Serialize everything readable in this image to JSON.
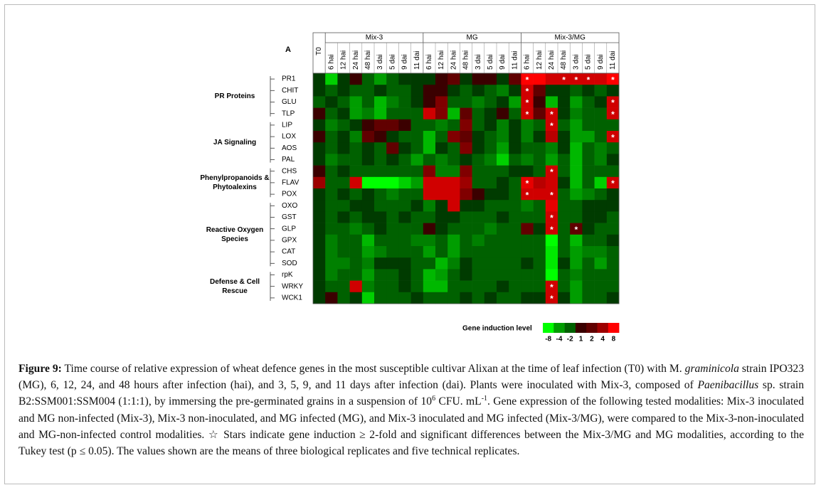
{
  "chart_data": {
    "type": "heatmap",
    "panel_label": "A",
    "t0": "T0",
    "column_groups": [
      {
        "name": "Mix-3",
        "columns": [
          "6 hai",
          "12 hai",
          "24 hai",
          "48 hai",
          "3 dai",
          "5 dai",
          "9 dai",
          "11 dai"
        ]
      },
      {
        "name": "MG",
        "columns": [
          "6 hai",
          "12 hai",
          "24 hai",
          "48 hai",
          "3 dai",
          "5 dai",
          "9 dai",
          "11 dai"
        ]
      },
      {
        "name": "Mix-3/MG",
        "columns": [
          "6 hai",
          "12 hai",
          "24 hai",
          "48 hai",
          "3 dai",
          "5 dai",
          "9 dai",
          "11 dai"
        ]
      }
    ],
    "row_groups": [
      {
        "lines": [
          "PR Proteins"
        ],
        "genes": [
          "PR1",
          "CHIT",
          "GLU",
          "TLP"
        ]
      },
      {
        "lines": [
          "JA Signaling"
        ],
        "genes": [
          "LIP",
          "LOX",
          "AOS",
          "PAL"
        ]
      },
      {
        "lines": [
          "Phenylpropanoids &",
          "Phytoalexins"
        ],
        "genes": [
          "CHS",
          "FLAV",
          "POX"
        ]
      },
      {
        "lines": [
          "Reactive Oxygen",
          "Species"
        ],
        "genes": [
          "OXO",
          "GST",
          "GLP",
          "GPX",
          "CAT",
          "SOD"
        ]
      },
      {
        "lines": [
          "Defense & Cell",
          "Rescue"
        ],
        "genes": [
          "rpK",
          "WRKY",
          "WCK1"
        ]
      }
    ],
    "values": [
      [
        -1,
        -6,
        -1,
        1,
        -2,
        -4,
        -2,
        -1,
        -1,
        -1,
        1,
        2,
        -1,
        1,
        1,
        -1,
        2,
        8,
        8,
        6,
        6,
        6,
        6,
        6,
        8
      ],
      [
        -1,
        -2,
        -1,
        -2,
        -2,
        -1,
        -2,
        -2,
        -1,
        1,
        1,
        -1,
        -2,
        -1,
        -2,
        -3,
        -1,
        6,
        2,
        -1,
        -1,
        -2,
        -1,
        -2,
        -1
      ],
      [
        -2,
        -1,
        -2,
        -4,
        -2,
        -5,
        -3,
        -2,
        -1,
        1,
        3,
        -2,
        -2,
        -3,
        -2,
        -1,
        -4,
        6,
        1,
        -5,
        -1,
        -4,
        -2,
        -1,
        6
      ],
      [
        1,
        -2,
        -1,
        -4,
        -3,
        -5,
        -2,
        -2,
        -2,
        6,
        3,
        -5,
        2,
        -2,
        -1,
        1,
        -2,
        6,
        2,
        6,
        -1,
        -3,
        -2,
        -2,
        6
      ],
      [
        -1,
        -3,
        -2,
        -1,
        1,
        2,
        2,
        1,
        -2,
        -2,
        -3,
        -2,
        3,
        -2,
        -1,
        -3,
        -1,
        -3,
        -2,
        6,
        -2,
        -4,
        -2,
        -2,
        -2
      ],
      [
        1,
        -2,
        -1,
        -3,
        2,
        1,
        -1,
        -2,
        -2,
        -5,
        -2,
        3,
        2,
        -1,
        -2,
        -3,
        -1,
        -3,
        -1,
        5,
        -1,
        -4,
        -4,
        -2,
        6
      ],
      [
        -1,
        -2,
        -1,
        -2,
        -1,
        -2,
        2,
        -1,
        -2,
        -5,
        -1,
        -2,
        3,
        -1,
        -2,
        -4,
        -1,
        -2,
        -2,
        -3,
        -1,
        -5,
        -2,
        -3,
        -2
      ],
      [
        -1,
        -3,
        -2,
        -2,
        -1,
        -2,
        -1,
        -2,
        -4,
        -2,
        -3,
        -2,
        -1,
        -2,
        -3,
        -6,
        -2,
        -3,
        -2,
        -4,
        -2,
        -5,
        -2,
        -3,
        -1
      ],
      [
        1,
        -2,
        -1,
        -2,
        -2,
        -2,
        -2,
        -2,
        -2,
        3,
        -3,
        -3,
        3,
        -2,
        -2,
        -2,
        -1,
        -1,
        -2,
        6,
        -2,
        -5,
        -2,
        -2,
        -2
      ],
      [
        4,
        -2,
        -2,
        6,
        -8,
        -8,
        -8,
        -6,
        -4,
        6,
        6,
        6,
        4,
        -2,
        -2,
        -1,
        -2,
        7,
        5,
        6,
        -1,
        -5,
        -2,
        -6,
        6
      ],
      [
        -1,
        -2,
        -1,
        -2,
        -1,
        -2,
        -3,
        -2,
        -2,
        6,
        6,
        6,
        3,
        1,
        -1,
        -1,
        -2,
        6,
        6,
        6,
        -2,
        -4,
        -3,
        -2,
        -1
      ],
      [
        -1,
        -2,
        -2,
        -1,
        -1,
        -2,
        -2,
        -2,
        -1,
        -3,
        -1,
        6,
        -1,
        -1,
        -2,
        -2,
        -2,
        -3,
        -2,
        7,
        -2,
        -2,
        -1,
        -1,
        -1
      ],
      [
        -1,
        -2,
        -1,
        -2,
        -1,
        -1,
        -2,
        -1,
        -2,
        -2,
        -1,
        -1,
        -2,
        -2,
        -2,
        -1,
        -2,
        -2,
        -2,
        6,
        -2,
        -2,
        -1,
        -1,
        -2
      ],
      [
        -1,
        -2,
        -2,
        -3,
        -2,
        -1,
        -2,
        -2,
        -2,
        1,
        -1,
        -2,
        -2,
        -2,
        -3,
        -2,
        -2,
        2,
        -1,
        6,
        -2,
        2,
        -1,
        -2,
        -2
      ],
      [
        -1,
        -3,
        -2,
        -2,
        -5,
        -2,
        -2,
        -2,
        -3,
        -3,
        -2,
        -4,
        -2,
        -3,
        -2,
        -2,
        -2,
        -2,
        -2,
        -8,
        -2,
        -5,
        -2,
        -2,
        -1
      ],
      [
        -1,
        -3,
        -2,
        -2,
        -4,
        -3,
        -2,
        -2,
        -2,
        -4,
        -2,
        -4,
        -2,
        -2,
        -2,
        -2,
        -2,
        -2,
        -2,
        -7,
        -2,
        -4,
        -3,
        -3,
        -2
      ],
      [
        -1,
        -3,
        -3,
        -2,
        -3,
        -1,
        -1,
        -1,
        -2,
        -2,
        -5,
        -3,
        -1,
        -2,
        -2,
        -2,
        -2,
        -1,
        -2,
        -7,
        -1,
        -4,
        -2,
        -4,
        -2
      ],
      [
        -1,
        -3,
        -2,
        -2,
        -4,
        -2,
        -2,
        -1,
        -2,
        -5,
        -4,
        -2,
        -1,
        -2,
        -2,
        -2,
        -2,
        -2,
        -2,
        -8,
        -2,
        -3,
        -2,
        -2,
        -2
      ],
      [
        -1,
        -2,
        -2,
        6,
        -3,
        -2,
        -2,
        -1,
        -2,
        -5,
        -5,
        -2,
        -2,
        -2,
        -2,
        -1,
        -2,
        -2,
        -2,
        6,
        -2,
        -4,
        -2,
        -2,
        -2
      ],
      [
        -1,
        1,
        -2,
        -1,
        -6,
        -2,
        -2,
        -2,
        -1,
        -2,
        -2,
        -2,
        -1,
        -2,
        -1,
        -2,
        -2,
        -1,
        -1,
        6,
        -1,
        -4,
        -2,
        -2,
        -1
      ]
    ],
    "star_symbol": "*",
    "stars": [
      [
        17,
        20,
        21,
        22,
        24
      ],
      [
        17
      ],
      [
        17,
        24
      ],
      [
        17,
        19,
        24
      ],
      [
        19
      ],
      [
        24
      ],
      [],
      [],
      [
        19
      ],
      [
        17,
        24
      ],
      [
        17,
        19
      ],
      [],
      [
        19
      ],
      [
        19,
        21
      ],
      [],
      [],
      [],
      [],
      [
        19
      ],
      [
        19
      ]
    ],
    "clim": [
      -8,
      8
    ],
    "colors": {
      "low": "#00ff00",
      "mid": "#000000",
      "high": "#ff0000"
    },
    "colorbar_label": "Gene induction level",
    "colorbar_ticks": [
      -8,
      -4,
      -2,
      1,
      2,
      4,
      8
    ]
  },
  "caption": {
    "label": "Figure 9:",
    "parts": [
      {
        "text": " Time course of relative expression of wheat defence genes in the most susceptible cultivar Alixan at the time of leaf infection (T0) with M. ",
        "style": "normal"
      },
      {
        "text": "graminicola",
        "style": "italic"
      },
      {
        "text": " strain IPO323 (MG), 6, 12, 24, and 48 hours after infection (hai), and 3, 5, 9, and 11 days after infection (dai). Plants were inoculated with Mix-3, composed of ",
        "style": "normal"
      },
      {
        "text": "Paenibacillus",
        "style": "italic"
      },
      {
        "text": " sp. strain B2:SSM001:SSM004 (1:1:1), by immersing the pre-germinated grains in a suspension of 10",
        "style": "normal"
      },
      {
        "text": "6",
        "style": "sup"
      },
      {
        "text": " CFU. mL",
        "style": "normal"
      },
      {
        "text": "-1",
        "style": "sup"
      },
      {
        "text": ". Gene expression of the following tested modalities: Mix-3 inoculated and MG non-infected (Mix-3), Mix-3 non-inoculated, and MG infected (MG), and Mix-3 inoculated and MG infected (Mix-3/MG), were compared to the Mix-3-non-inoculated and MG-non-infected control modalities. ☆ Stars indicate gene induction ≥ 2-fold and significant differences between the Mix-3/MG and MG modalities, according to the Tukey test (p ≤ 0.05). The values shown are the means of three biological replicates and five technical replicates.",
        "style": "normal"
      }
    ]
  }
}
